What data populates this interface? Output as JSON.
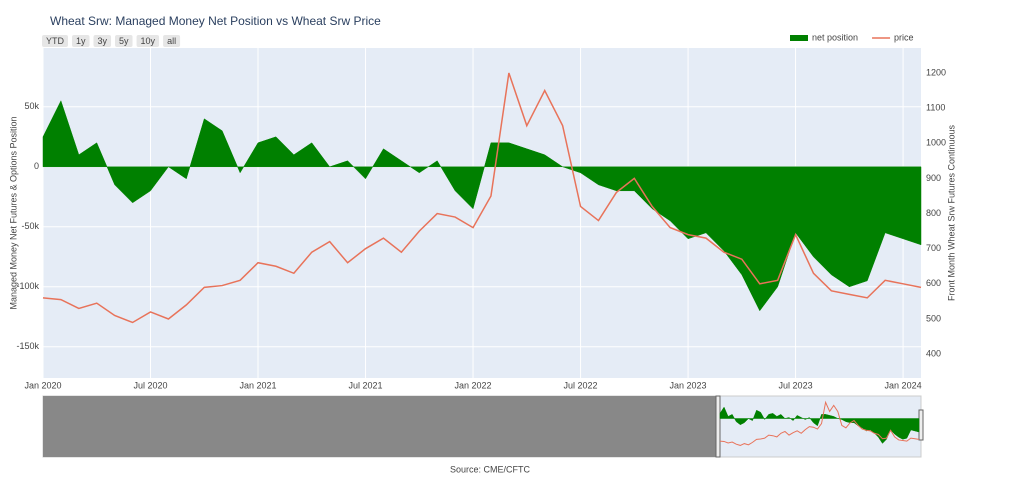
{
  "chart_data": {
    "type": "area-line",
    "title": "Wheat Srw: Managed Money Net Position vs Wheat Srw Price",
    "range_buttons": [
      "YTD",
      "1y",
      "3y",
      "5y",
      "10y",
      "all"
    ],
    "y_label": "Managed Money Net Futures & Options Position",
    "y2_label": "Front Month Wheat Srw Futures Continuous",
    "source": "Source: CME/CFTC",
    "legend": "top-right",
    "grid": true,
    "x": [
      "2020-01",
      "2020-02",
      "2020-03",
      "2020-04",
      "2020-05",
      "2020-06",
      "2020-07",
      "2020-08",
      "2020-09",
      "2020-10",
      "2020-11",
      "2020-12",
      "2021-01",
      "2021-02",
      "2021-03",
      "2021-04",
      "2021-05",
      "2021-06",
      "2021-07",
      "2021-08",
      "2021-09",
      "2021-10",
      "2021-11",
      "2021-12",
      "2022-01",
      "2022-02",
      "2022-03",
      "2022-04",
      "2022-05",
      "2022-06",
      "2022-07",
      "2022-08",
      "2022-09",
      "2022-10",
      "2022-11",
      "2022-12",
      "2023-01",
      "2023-02",
      "2023-03",
      "2023-04",
      "2023-05",
      "2023-06",
      "2023-07",
      "2023-08",
      "2023-09",
      "2023-10",
      "2023-11",
      "2023-12",
      "2024-01",
      "2024-02"
    ],
    "xlim": [
      "2020-01",
      "2024-02"
    ],
    "xticks": [
      {
        "value": "2020-01",
        "label": "Jan 2020"
      },
      {
        "value": "2020-07",
        "label": "Jul 2020"
      },
      {
        "value": "2021-01",
        "label": "Jan 2021"
      },
      {
        "value": "2021-07",
        "label": "Jul 2021"
      },
      {
        "value": "2022-01",
        "label": "Jan 2022"
      },
      {
        "value": "2022-07",
        "label": "Jul 2022"
      },
      {
        "value": "2023-01",
        "label": "Jan 2023"
      },
      {
        "value": "2023-07",
        "label": "Jul 2023"
      },
      {
        "value": "2024-01",
        "label": "Jan 2024"
      }
    ],
    "ylim": [
      -176000,
      99000
    ],
    "yticks": [
      {
        "value": -150000,
        "label": "-150k"
      },
      {
        "value": -100000,
        "label": "-100k"
      },
      {
        "value": -50000,
        "label": "-50k"
      },
      0,
      {
        "value": 50000,
        "label": "50k"
      }
    ],
    "y2lim": [
      332,
      1271
    ],
    "y2ticks": [
      400,
      500,
      600,
      700,
      800,
      900,
      1000,
      1100,
      1200
    ],
    "series": [
      {
        "name": "net position",
        "color": "#008000",
        "kind": "area",
        "values": [
          25000,
          55000,
          10000,
          20000,
          -15000,
          -30000,
          -20000,
          0,
          -10000,
          40000,
          30000,
          -5000,
          20000,
          25000,
          10000,
          20000,
          0,
          5000,
          -10000,
          15000,
          5000,
          -5000,
          5000,
          -20000,
          -35000,
          20000,
          20000,
          15000,
          10000,
          0,
          -5000,
          -15000,
          -20000,
          -20000,
          -35000,
          -45000,
          -60000,
          -55000,
          -70000,
          -90000,
          -120000,
          -100000,
          -55000,
          -75000,
          -90000,
          -100000,
          -95000,
          -55000,
          -60000,
          -65000
        ]
      },
      {
        "name": "price",
        "color": "#e8735a",
        "kind": "line",
        "axis": "y2",
        "values": [
          560,
          555,
          530,
          545,
          510,
          490,
          520,
          500,
          540,
          590,
          595,
          610,
          660,
          650,
          630,
          690,
          720,
          660,
          700,
          730,
          690,
          750,
          800,
          790,
          760,
          850,
          1200,
          1050,
          1150,
          1050,
          820,
          780,
          860,
          900,
          820,
          760,
          740,
          730,
          690,
          670,
          600,
          610,
          740,
          630,
          580,
          570,
          560,
          610,
          600,
          590
        ]
      }
    ]
  }
}
